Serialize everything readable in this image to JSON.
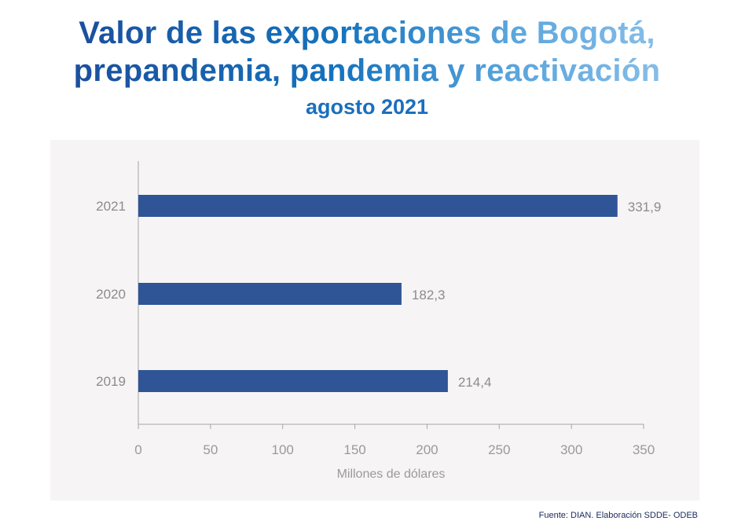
{
  "chart_data": {
    "type": "bar",
    "orientation": "horizontal",
    "title": "Valor de las exportaciones de Bogotá, prepandemia, pandemia y reactivación",
    "title_lines": [
      "Valor de las exportaciones de Bogotá,",
      "prepandemia, pandemia y reactivación"
    ],
    "subtitle": "agosto 2021",
    "categories": [
      "2021",
      "2020",
      "2019"
    ],
    "values": [
      331.9,
      182.3,
      214.4
    ],
    "data_labels": [
      "331,9",
      "182,3",
      "214,4"
    ],
    "xlabel": "Millones de dólares",
    "ylabel": "",
    "xlim": [
      0,
      350
    ],
    "xticks": [
      0,
      50,
      100,
      150,
      200,
      250,
      300,
      350
    ],
    "grid": false,
    "bar_color": "#2f5597",
    "source": "Fuente: DIAN. Elaboración SDDE- ODEB"
  }
}
